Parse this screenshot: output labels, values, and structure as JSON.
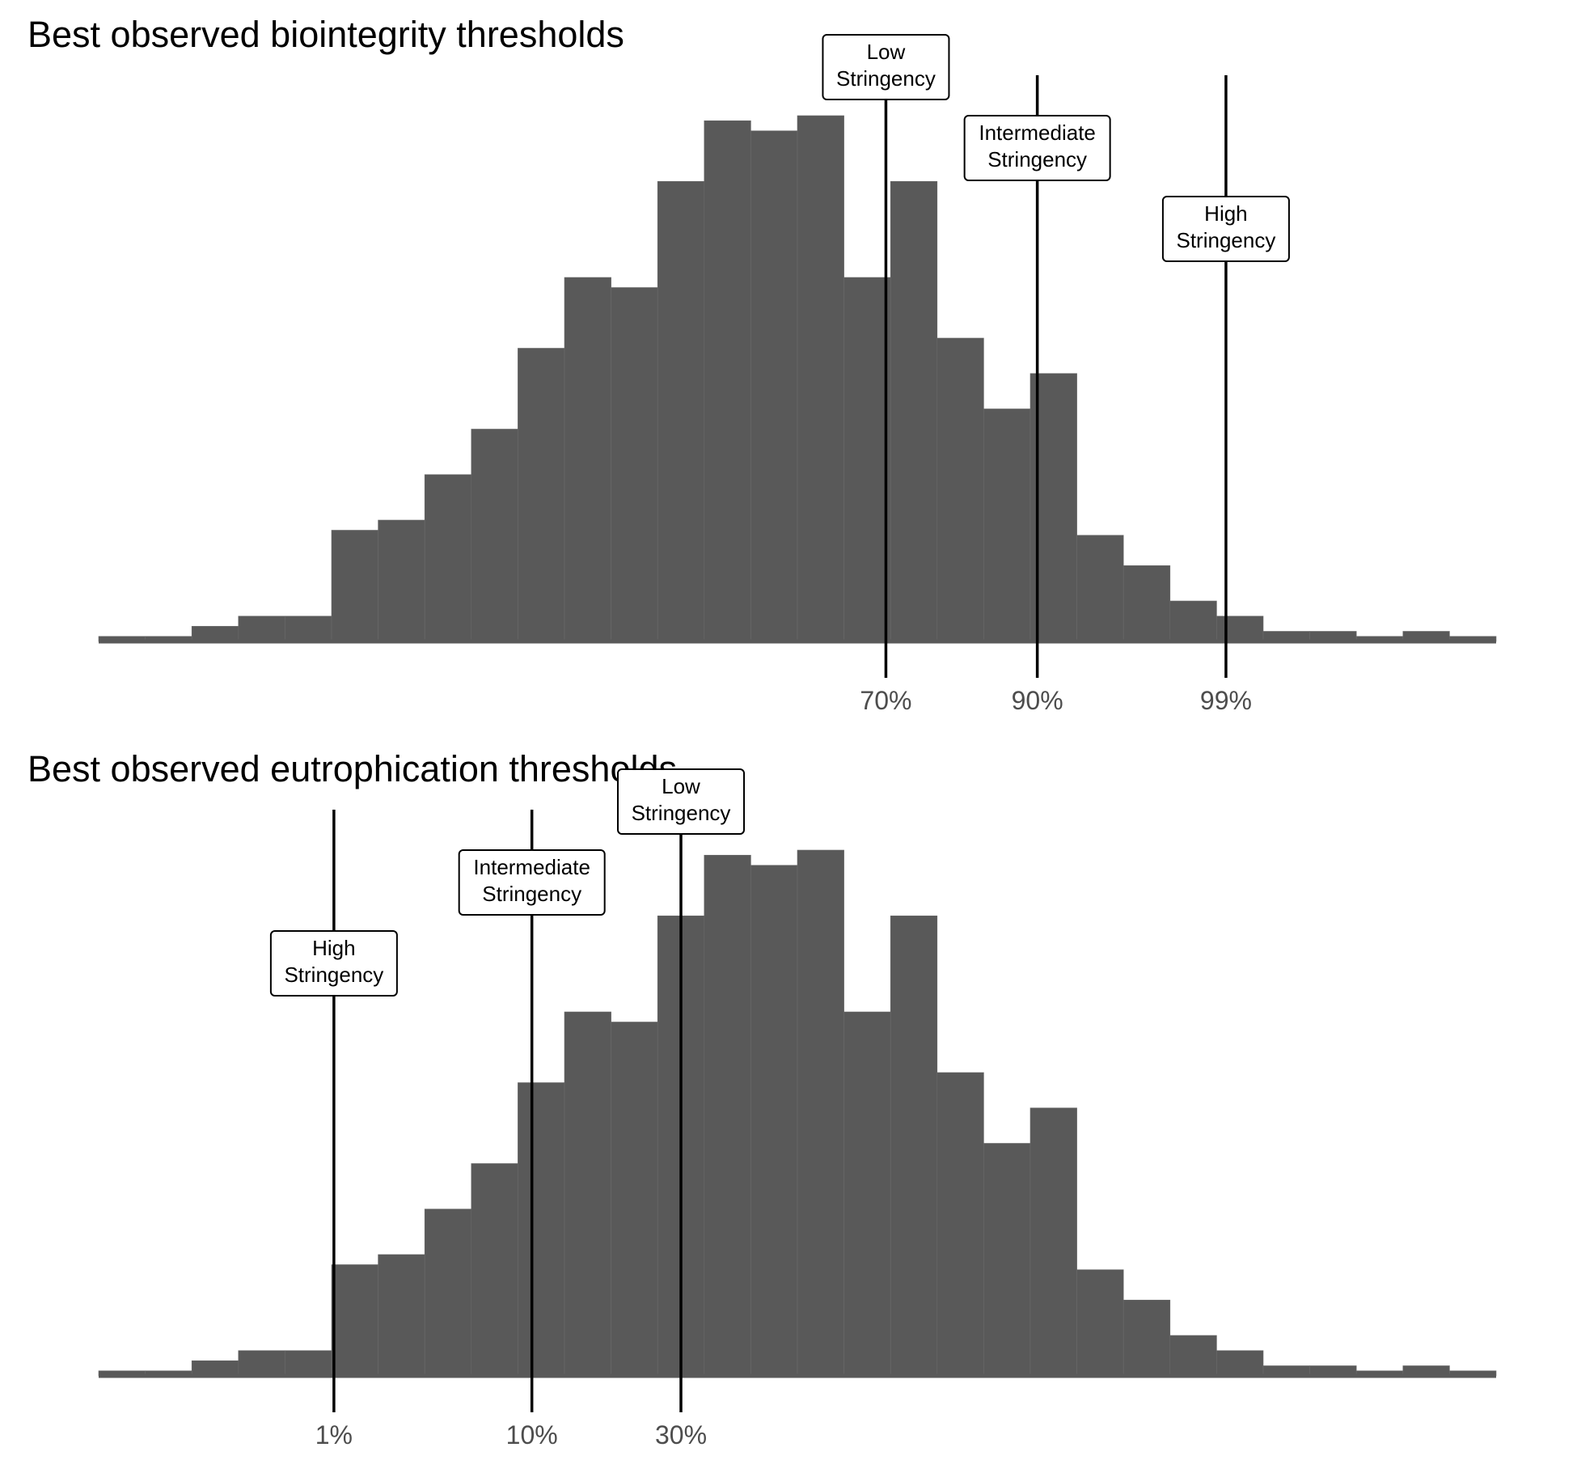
{
  "colors": {
    "bar": "#595959",
    "line": "#000000",
    "tick_text": "#4d4d4d"
  },
  "chart_data": [
    {
      "type": "bar",
      "title": "Best observed biointegrity thresholds",
      "values": [
        1,
        1,
        3,
        5,
        5,
        22,
        24,
        33,
        42,
        58,
        72,
        70,
        91,
        103,
        101,
        104,
        72,
        91,
        60,
        46,
        53,
        21,
        15,
        8,
        5,
        2,
        2,
        1,
        2,
        1
      ],
      "ylim": [
        0,
        112
      ],
      "thresholds": [
        {
          "bin_position": 16.9,
          "tick_label": "70%",
          "label_lines": [
            "Low",
            "Stringency"
          ],
          "label_top": 120
        },
        {
          "bin_position": 20.15,
          "tick_label": "90%",
          "label_lines": [
            "Intermediate",
            "Stringency"
          ],
          "label_top": 104
        },
        {
          "bin_position": 24.2,
          "tick_label": "99%",
          "label_lines": [
            "High",
            "Stringency"
          ],
          "label_top": 88
        }
      ]
    },
    {
      "type": "bar",
      "title": "Best observed eutrophication thresholds",
      "values": [
        1,
        1,
        3,
        5,
        5,
        22,
        24,
        33,
        42,
        58,
        72,
        70,
        91,
        103,
        101,
        104,
        72,
        91,
        60,
        46,
        53,
        21,
        15,
        8,
        5,
        2,
        2,
        1,
        2,
        1
      ],
      "ylim": [
        0,
        112
      ],
      "thresholds": [
        {
          "bin_position": 5.05,
          "tick_label": "1%",
          "label_lines": [
            "High",
            "Stringency"
          ],
          "label_top": 88
        },
        {
          "bin_position": 9.3,
          "tick_label": "10%",
          "label_lines": [
            "Intermediate",
            "Stringency"
          ],
          "label_top": 104
        },
        {
          "bin_position": 12.5,
          "tick_label": "30%",
          "label_lines": [
            "Low",
            "Stringency"
          ],
          "label_top": 120
        }
      ]
    }
  ]
}
